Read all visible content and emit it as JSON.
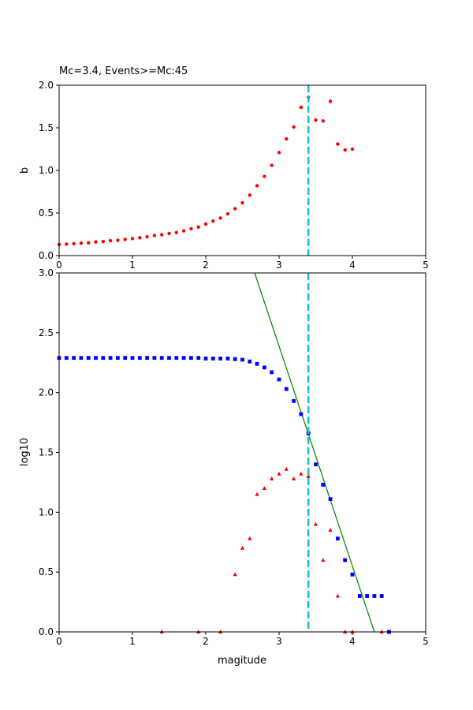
{
  "chart_data": [
    {
      "type": "scatter",
      "title": "Mc=3.4, Events>=Mc:45",
      "xlabel": "",
      "ylabel": "b",
      "xlim": [
        0,
        5
      ],
      "ylim": [
        0,
        2
      ],
      "xticks": [
        "0",
        "1",
        "2",
        "3",
        "4",
        "5"
      ],
      "yticks": [
        "0.0",
        "0.5",
        "1.0",
        "1.5",
        "2.0"
      ],
      "grid": false,
      "series": [
        {
          "color": "#ff0000",
          "marker": "circle",
          "x": [
            0,
            0.1,
            0.2,
            0.3,
            0.4,
            0.5,
            0.6,
            0.7,
            0.8,
            0.9,
            1.0,
            1.1,
            1.2,
            1.3,
            1.4,
            1.5,
            1.6,
            1.7,
            1.8,
            1.9,
            2.0,
            2.1,
            2.2,
            2.3,
            2.4,
            2.5,
            2.6,
            2.7,
            2.8,
            2.9,
            3.0,
            3.1,
            3.2,
            3.3,
            3.4,
            3.5,
            3.6,
            3.7,
            3.8,
            3.9,
            4.0
          ],
          "y": [
            0.13,
            0.135,
            0.14,
            0.145,
            0.15,
            0.16,
            0.165,
            0.175,
            0.18,
            0.19,
            0.2,
            0.21,
            0.22,
            0.235,
            0.245,
            0.26,
            0.27,
            0.29,
            0.315,
            0.335,
            0.37,
            0.405,
            0.44,
            0.49,
            0.55,
            0.62,
            0.71,
            0.82,
            0.93,
            1.06,
            1.21,
            1.37,
            1.51,
            1.74,
            1.86,
            1.59,
            1.58,
            1.81,
            1.31,
            1.24,
            1.25
          ]
        }
      ],
      "vline": {
        "x": 3.4,
        "color": "#17becf",
        "style": "dashed"
      }
    },
    {
      "type": "scatter",
      "title": "",
      "xlabel": "magitude",
      "ylabel": "log10",
      "xlim": [
        0,
        5
      ],
      "ylim": [
        0,
        3
      ],
      "xticks": [
        "0",
        "1",
        "2",
        "3",
        "4",
        "5"
      ],
      "yticks": [
        "0.0",
        "0.5",
        "1.0",
        "1.5",
        "2.0",
        "2.5",
        "3.0"
      ],
      "grid": false,
      "series": [
        {
          "color": "#0000ff",
          "marker": "square",
          "x": [
            0,
            0.1,
            0.2,
            0.3,
            0.4,
            0.5,
            0.6,
            0.7,
            0.8,
            0.9,
            1.0,
            1.1,
            1.2,
            1.3,
            1.4,
            1.5,
            1.6,
            1.7,
            1.8,
            1.9,
            2.0,
            2.1,
            2.2,
            2.3,
            2.4,
            2.5,
            2.6,
            2.7,
            2.8,
            2.9,
            3.0,
            3.1,
            3.2,
            3.3,
            3.4,
            3.5,
            3.6,
            3.7,
            3.8,
            3.9,
            4.0,
            4.1,
            4.2,
            4.3,
            4.4,
            4.5
          ],
          "y": [
            2.29,
            2.29,
            2.29,
            2.29,
            2.29,
            2.29,
            2.29,
            2.29,
            2.29,
            2.29,
            2.29,
            2.29,
            2.29,
            2.29,
            2.29,
            2.29,
            2.29,
            2.29,
            2.29,
            2.29,
            2.285,
            2.285,
            2.285,
            2.285,
            2.28,
            2.275,
            2.26,
            2.24,
            2.21,
            2.17,
            2.11,
            2.03,
            1.93,
            1.82,
            1.66,
            1.4,
            1.23,
            1.11,
            0.78,
            0.6,
            0.48,
            0.3,
            0.3,
            0.3,
            0.3,
            0.0
          ]
        },
        {
          "color": "#ff0000",
          "marker": "triangle",
          "x": [
            1.4,
            1.9,
            2.2,
            2.4,
            2.5,
            2.6,
            2.7,
            2.8,
            2.9,
            3.0,
            3.1,
            3.2,
            3.3,
            3.4,
            3.5,
            3.6,
            3.7,
            3.8,
            3.9,
            4.0,
            4.4
          ],
          "y": [
            0.0,
            0.0,
            0.0,
            0.48,
            0.7,
            0.78,
            1.15,
            1.2,
            1.28,
            1.32,
            1.36,
            1.28,
            1.32,
            1.3,
            0.9,
            0.6,
            0.85,
            0.3,
            0.0,
            0.0,
            0.0
          ]
        }
      ],
      "fit_line": {
        "color": "#008000",
        "x": [
          2.667,
          4.3
        ],
        "y": [
          3.0,
          0.0
        ]
      },
      "vline": {
        "x": 3.4,
        "color": "#17becf",
        "style": "dashed"
      }
    }
  ]
}
